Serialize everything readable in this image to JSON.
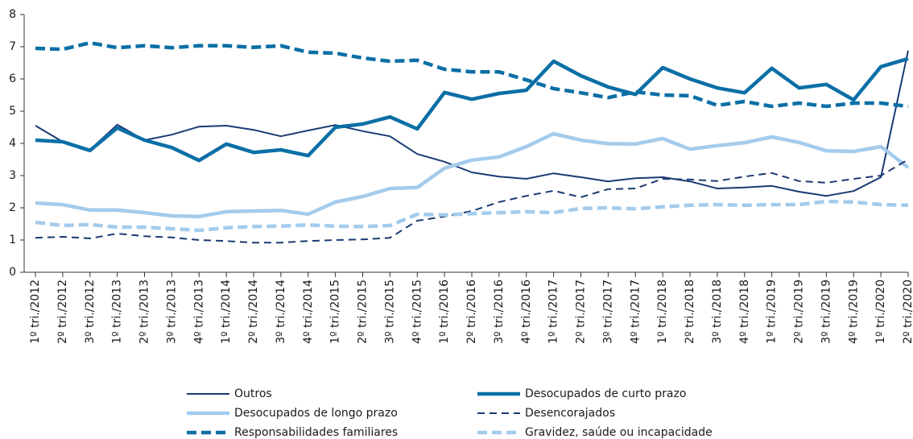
{
  "chart_data": {
    "type": "line",
    "categories": [
      "1º tri./2012",
      "2º tri./2012",
      "3º tri./2012",
      "1º tri./2013",
      "2º tri./2013",
      "3º tri./2013",
      "4º tri./2013",
      "1º tri./2014",
      "2º tri./2014",
      "3º tri./2014",
      "4º tri./2014",
      "1º tri./2015",
      "2º tri./2015",
      "3º tri./2015",
      "4º tri./2015",
      "1º tri./2016",
      "2º tri./2016",
      "3º tri./2016",
      "4º tri./2016",
      "1º tri./2017",
      "2º tri./2017",
      "3º tri./2017",
      "4º tri./2017",
      "1º tri./2018",
      "2º tri./2018",
      "3º tri./2018",
      "4º tri./2018",
      "1º tri./2019",
      "2º tri./2019",
      "3º tri./2019",
      "4º tri./2019",
      "1º tri./2020",
      "2º tri./2020"
    ],
    "ylim": [
      0,
      8
    ],
    "yticks": [
      0,
      1,
      2,
      3,
      4,
      5,
      6,
      7,
      8
    ],
    "grid": false,
    "legend": "bottom",
    "series": [
      {
        "name": "Outros",
        "color": "#1b3a72",
        "thick": false,
        "dashed": false,
        "values": [
          4.55,
          4.05,
          3.8,
          4.58,
          4.1,
          4.27,
          4.52,
          4.55,
          4.42,
          4.22,
          4.4,
          4.57,
          4.38,
          4.22,
          3.67,
          3.43,
          3.1,
          2.97,
          2.9,
          3.07,
          2.95,
          2.82,
          2.92,
          2.95,
          2.82,
          2.6,
          2.63,
          2.68,
          2.5,
          2.37,
          2.52,
          2.95,
          6.88
        ]
      },
      {
        "name": "Desocupados de curto prazo",
        "color": "#0b6fa6",
        "thick": true,
        "dashed": false,
        "values": [
          4.1,
          4.05,
          3.78,
          4.48,
          4.1,
          3.87,
          3.47,
          3.98,
          3.72,
          3.8,
          3.62,
          4.5,
          4.6,
          4.82,
          4.45,
          5.58,
          5.37,
          5.55,
          5.65,
          6.55,
          6.1,
          5.75,
          5.52,
          6.35,
          6.0,
          5.72,
          5.57,
          6.33,
          5.72,
          5.83,
          5.35,
          6.38,
          6.63
        ]
      },
      {
        "name": "Desocupados de longo prazo",
        "color": "#a3cbec",
        "thick": true,
        "dashed": false,
        "values": [
          2.15,
          2.1,
          1.93,
          1.93,
          1.85,
          1.75,
          1.73,
          1.88,
          1.9,
          1.92,
          1.8,
          2.18,
          2.35,
          2.6,
          2.63,
          3.23,
          3.48,
          3.58,
          3.9,
          4.3,
          4.1,
          3.99,
          3.98,
          4.15,
          3.82,
          3.93,
          4.02,
          4.2,
          4.03,
          3.77,
          3.75,
          3.9,
          3.25
        ]
      },
      {
        "name": "Desencorajados",
        "color": "#1b3a72",
        "thick": false,
        "dashed": true,
        "values": [
          1.07,
          1.1,
          1.05,
          1.2,
          1.12,
          1.08,
          1.0,
          0.97,
          0.92,
          0.92,
          0.97,
          1.0,
          1.02,
          1.07,
          1.6,
          1.73,
          1.9,
          2.18,
          2.37,
          2.53,
          2.33,
          2.58,
          2.6,
          2.9,
          2.88,
          2.83,
          2.97,
          3.08,
          2.83,
          2.78,
          2.9,
          3.0,
          3.5
        ]
      },
      {
        "name": "Responsabilidades familiares",
        "color": "#0b6fa6",
        "thick": true,
        "dashed": true,
        "values": [
          6.95,
          6.92,
          7.12,
          6.97,
          7.03,
          6.97,
          7.03,
          7.03,
          6.98,
          7.03,
          6.83,
          6.8,
          6.65,
          6.55,
          6.58,
          6.3,
          6.22,
          6.22,
          5.97,
          5.7,
          5.57,
          5.42,
          5.6,
          5.5,
          5.48,
          5.18,
          5.3,
          5.15,
          5.25,
          5.15,
          5.25,
          5.25,
          5.15
        ]
      },
      {
        "name": "Gravidez, saúde ou incapacidade",
        "color": "#a3cbec",
        "thick": true,
        "dashed": true,
        "values": [
          1.55,
          1.45,
          1.48,
          1.4,
          1.4,
          1.35,
          1.3,
          1.38,
          1.42,
          1.43,
          1.47,
          1.43,
          1.42,
          1.45,
          1.8,
          1.78,
          1.82,
          1.85,
          1.88,
          1.85,
          1.98,
          2.0,
          1.97,
          2.03,
          2.08,
          2.1,
          2.08,
          2.1,
          2.1,
          2.2,
          2.18,
          2.1,
          2.08
        ]
      }
    ]
  }
}
